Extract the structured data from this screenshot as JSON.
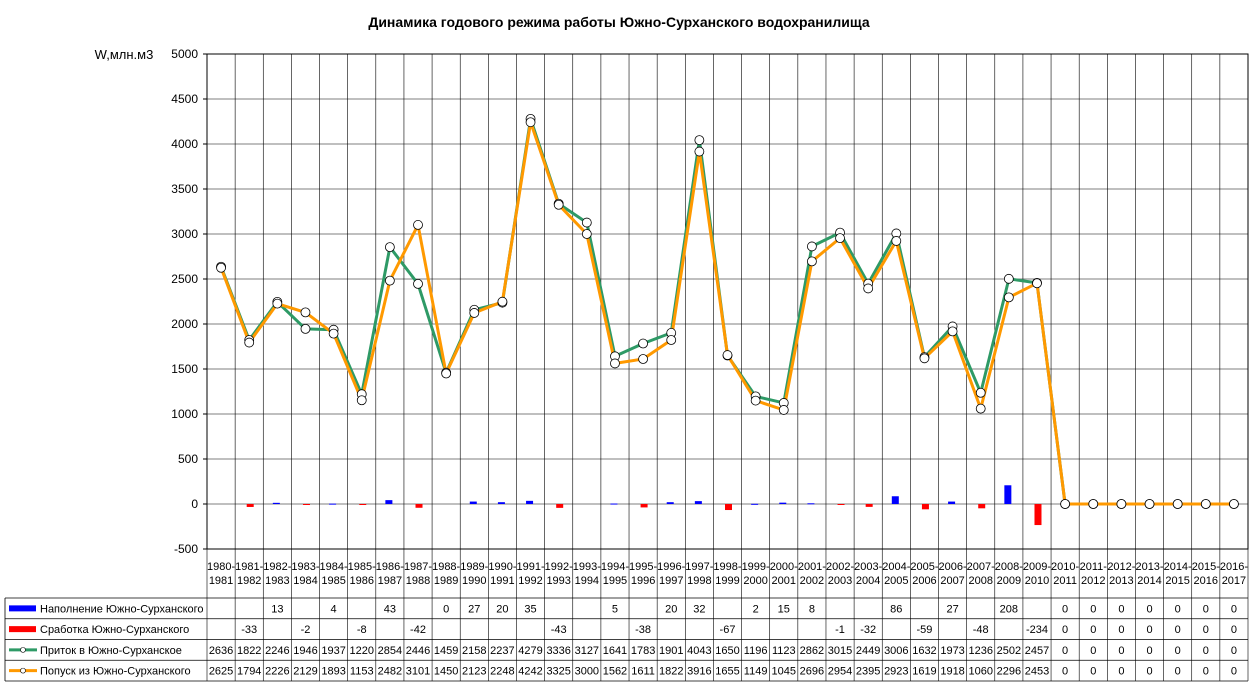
{
  "chart_data": {
    "type": "line",
    "title": "Динамика годового режима работы Южно-Сурханского водохранилища",
    "ylabel": "W,млн.м3",
    "ylim": [
      -500,
      5000
    ],
    "yticks": [
      -500,
      0,
      500,
      1000,
      1500,
      2000,
      2500,
      3000,
      3500,
      4000,
      4500,
      5000
    ],
    "grid": true,
    "legend": "data-table-left",
    "categories": [
      [
        "1980-",
        "1981"
      ],
      [
        "1981-",
        "1982"
      ],
      [
        "1982-",
        "1983"
      ],
      [
        "1983-",
        "1984"
      ],
      [
        "1984-",
        "1985"
      ],
      [
        "1985-",
        "1986"
      ],
      [
        "1986-",
        "1987"
      ],
      [
        "1987-",
        "1988"
      ],
      [
        "1988-",
        "1989"
      ],
      [
        "1989-",
        "1990"
      ],
      [
        "1990-",
        "1991"
      ],
      [
        "1991-",
        "1992"
      ],
      [
        "1992-",
        "1993"
      ],
      [
        "1993-",
        "1994"
      ],
      [
        "1994-",
        "1995"
      ],
      [
        "1995-",
        "1996"
      ],
      [
        "1996-",
        "1997"
      ],
      [
        "1997-",
        "1998"
      ],
      [
        "1998-",
        "1999"
      ],
      [
        "1999-",
        "2000"
      ],
      [
        "2000-",
        "2001"
      ],
      [
        "2001-",
        "2002"
      ],
      [
        "2002-",
        "2003"
      ],
      [
        "2003-",
        "2004"
      ],
      [
        "2004-",
        "2005"
      ],
      [
        "2005-",
        "2006"
      ],
      [
        "2006-",
        "2007"
      ],
      [
        "2007-",
        "2008"
      ],
      [
        "2008-",
        "2009"
      ],
      [
        "2009-",
        "2010"
      ],
      [
        "2010-",
        "2011"
      ],
      [
        "2011-",
        "2012"
      ],
      [
        "2012-",
        "2013"
      ],
      [
        "2013-",
        "2014"
      ],
      [
        "2014-",
        "2015"
      ],
      [
        "2015-",
        "2016"
      ],
      [
        "2016-",
        "2017"
      ]
    ],
    "series": [
      {
        "name": "Наполнение Южно-Сурханского",
        "kind": "bar",
        "color": "#0000ff",
        "values": [
          null,
          null,
          13,
          null,
          4,
          null,
          43,
          null,
          0,
          27,
          20,
          35,
          null,
          null,
          5,
          null,
          20,
          32,
          null,
          2,
          15,
          8,
          null,
          null,
          86,
          null,
          27,
          null,
          208,
          null,
          0,
          0,
          0,
          0,
          0,
          0,
          0
        ]
      },
      {
        "name": "Сработка Южно-Сурханского",
        "kind": "bar",
        "color": "#ff0000",
        "values": [
          null,
          -33,
          null,
          -2,
          null,
          -8,
          null,
          -42,
          null,
          null,
          null,
          null,
          -43,
          null,
          null,
          -38,
          null,
          null,
          -67,
          null,
          null,
          null,
          -1,
          -32,
          null,
          -59,
          null,
          -48,
          null,
          -234,
          0,
          0,
          0,
          0,
          0,
          0,
          0
        ]
      },
      {
        "name": "Приток в Южно-Сурханское",
        "kind": "line",
        "color": "#2e9a66",
        "values": [
          2636,
          1822,
          2246,
          1946,
          1937,
          1220,
          2854,
          2446,
          1459,
          2158,
          2237,
          4279,
          3336,
          3127,
          1641,
          1783,
          1901,
          4043,
          1650,
          1196,
          1123,
          2862,
          3015,
          2449,
          3006,
          1632,
          1973,
          1236,
          2502,
          2457,
          0,
          0,
          0,
          0,
          0,
          0,
          0
        ]
      },
      {
        "name": "Попуск из Южно-Сурханского",
        "kind": "line",
        "color": "#ff9900",
        "values": [
          2625,
          1794,
          2226,
          2129,
          1893,
          1153,
          2482,
          3101,
          1450,
          2123,
          2248,
          4242,
          3325,
          3000,
          1562,
          1611,
          1822,
          3916,
          1655,
          1149,
          1045,
          2696,
          2954,
          2395,
          2923,
          1619,
          1918,
          1060,
          2296,
          2453,
          0,
          0,
          0,
          0,
          0,
          0,
          0
        ]
      }
    ]
  }
}
